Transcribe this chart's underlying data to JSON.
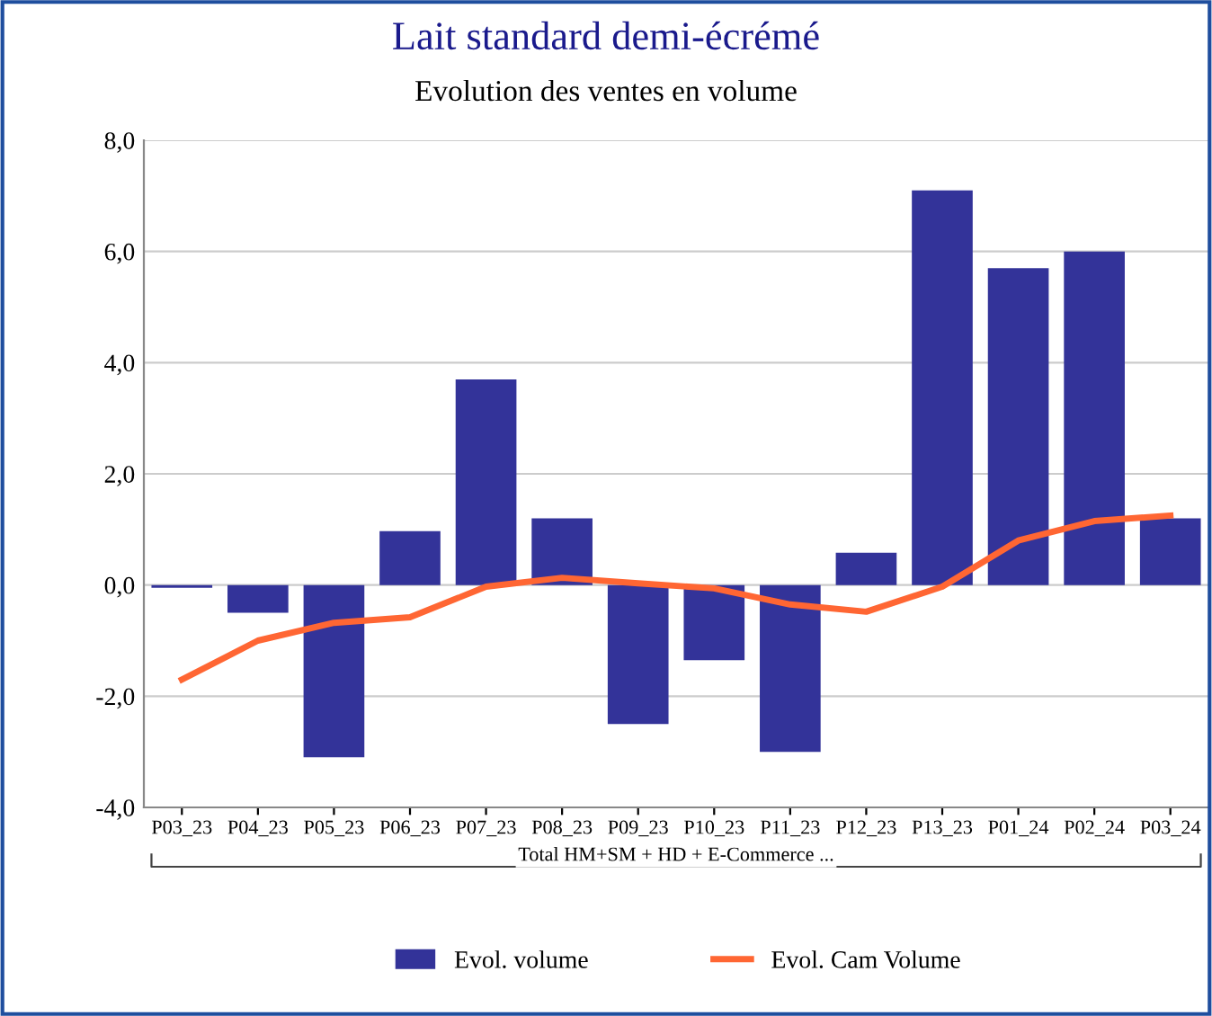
{
  "chart_data": {
    "type": "bar",
    "title": "Lait standard demi-écrémé",
    "subtitle": "Evolution des ventes en volume",
    "categories": [
      "P03_23",
      "P04_23",
      "P05_23",
      "P06_23",
      "P07_23",
      "P08_23",
      "P09_23",
      "P10_23",
      "P11_23",
      "P12_23",
      "P13_23",
      "P01_24",
      "P02_24",
      "P03_24"
    ],
    "series": [
      {
        "name": "Evol. volume",
        "color": "#333399",
        "values": [
          -0.05,
          -0.5,
          -3.1,
          0.97,
          3.7,
          1.2,
          -2.5,
          -1.35,
          -3.0,
          0.58,
          7.1,
          5.7,
          6.0,
          1.2
        ]
      },
      {
        "name": "Evol. Cam Volume",
        "type": "line",
        "color": "#ff6633",
        "values": [
          -1.7,
          -1.0,
          -0.68,
          -0.58,
          -0.03,
          0.13,
          0.03,
          -0.06,
          -0.35,
          -0.48,
          -0.03,
          0.8,
          1.15,
          1.25
        ]
      }
    ],
    "ylim": [
      -4,
      8
    ],
    "yticks": [
      {
        "value": -4,
        "label": "-4,0"
      },
      {
        "value": -2,
        "label": "-2,0"
      },
      {
        "value": 0,
        "label": "0,0"
      },
      {
        "value": 2,
        "label": "2,0"
      },
      {
        "value": 4,
        "label": "4,0"
      },
      {
        "value": 6,
        "label": "6,0"
      },
      {
        "value": 8,
        "label": "8,0"
      }
    ],
    "grid": "y",
    "legend": "bottom",
    "marker": "none",
    "annotations": [
      "Total HM+SM + HD + E-Commerce ..."
    ]
  }
}
